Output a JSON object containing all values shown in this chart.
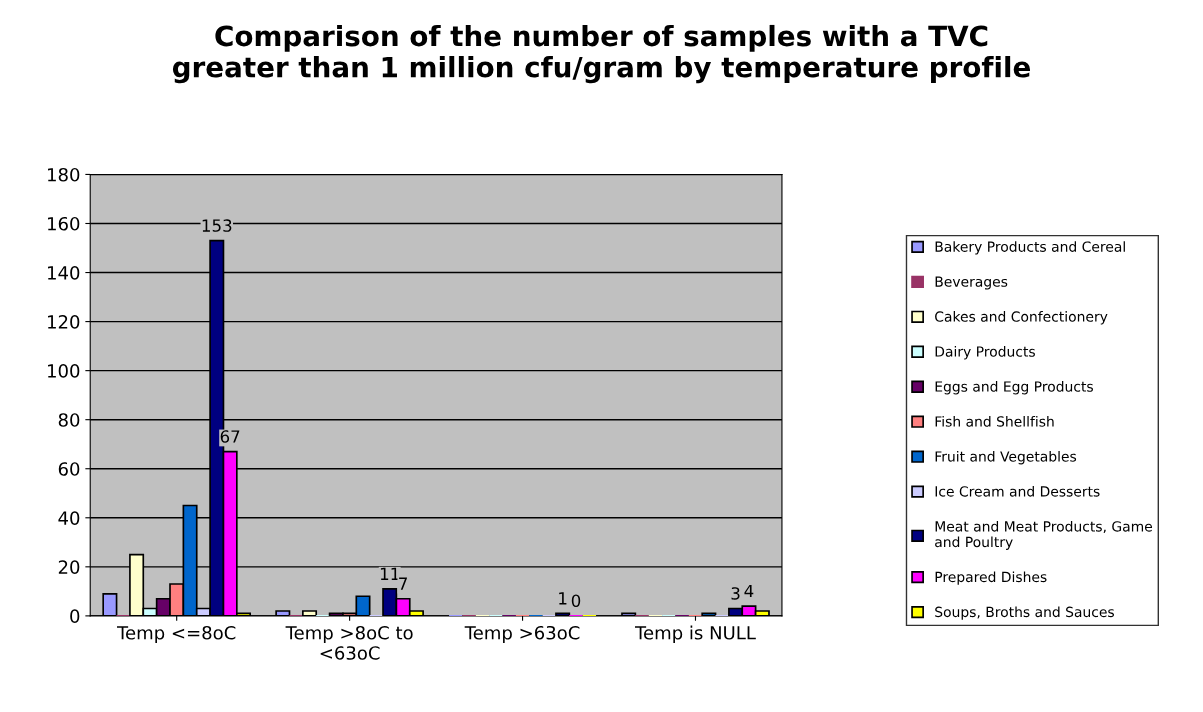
{
  "chart_data": {
    "type": "bar",
    "title": "Comparison of the number of samples with a TVC\ngreater than 1 million cfu/gram by temperature profile",
    "categories": [
      "Temp <=8oC",
      "Temp >8oC to\n<63oC",
      "Temp >63oC",
      "Temp is NULL"
    ],
    "series": [
      {
        "name": "Bakery Products and Cereal",
        "color": "#9999ff",
        "values": [
          9,
          2,
          0,
          1
        ]
      },
      {
        "name": "Beverages",
        "color": "#993366",
        "values": [
          0,
          0,
          0,
          0
        ]
      },
      {
        "name": "Cakes and Confectionery",
        "color": "#ffffcc",
        "values": [
          25,
          2,
          0,
          0
        ]
      },
      {
        "name": "Dairy Products",
        "color": "#ccffff",
        "values": [
          3,
          0,
          0,
          0
        ]
      },
      {
        "name": "Eggs and Egg Products",
        "color": "#660066",
        "values": [
          7,
          1,
          0,
          0
        ]
      },
      {
        "name": "Fish and Shellfish",
        "color": "#ff8080",
        "values": [
          13,
          1,
          0,
          0
        ]
      },
      {
        "name": "Fruit and Vegetables",
        "color": "#0066cc",
        "values": [
          45,
          8,
          0,
          1
        ]
      },
      {
        "name": "Ice Cream and Desserts",
        "color": "#ccccff",
        "values": [
          3,
          0,
          0,
          0
        ]
      },
      {
        "name": "Meat and Meat Products, Game\nand Poultry",
        "color": "#000080",
        "values": [
          153,
          11,
          1,
          3
        ],
        "value_labels": [
          "153",
          "11",
          "1",
          "3"
        ]
      },
      {
        "name": "Prepared Dishes",
        "color": "#ff00ff",
        "values": [
          67,
          7,
          0,
          4
        ],
        "value_labels": [
          "67",
          "7",
          "0",
          "4"
        ]
      },
      {
        "name": "Soups, Broths and Sauces",
        "color": "#ffff00",
        "values": [
          1,
          2,
          0,
          2
        ]
      }
    ],
    "ylim": [
      0,
      180
    ],
    "yticks": [
      0,
      20,
      40,
      60,
      80,
      100,
      120,
      140,
      160,
      180
    ],
    "grid": "y",
    "legend": "right"
  }
}
